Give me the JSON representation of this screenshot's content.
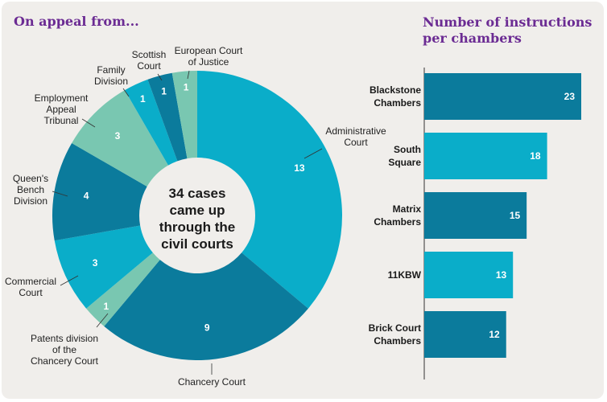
{
  "chart_data": [
    {
      "type": "pie",
      "title": "On appeal from...",
      "center_text": [
        "34 cases",
        "came up",
        "through the",
        "civil courts"
      ],
      "categories": [
        "Administrative Court",
        "Chancery Court",
        "Patents division of the Chancery Court",
        "Commercial Court",
        "Queen's Bench Division",
        "Employment Appeal Tribunal",
        "Family Division",
        "Scottish Court",
        "European Court of Justice"
      ],
      "values": [
        13,
        9,
        1,
        3,
        4,
        3,
        1,
        1,
        1
      ],
      "colors": [
        "#0aadc9",
        "#0b7b9c",
        "#79c7b1",
        "#0aadc9",
        "#0b7b9c",
        "#79c7b1",
        "#0aadc9",
        "#0b7b9c",
        "#79c7b1"
      ]
    },
    {
      "type": "bar",
      "orientation": "horizontal",
      "title": "Number of instructions per chambers",
      "categories": [
        [
          "Blackstone",
          "Chambers"
        ],
        [
          "South",
          "Square"
        ],
        [
          "Matrix",
          "Chambers"
        ],
        [
          "11KBW"
        ],
        [
          "Brick Court",
          "Chambers"
        ]
      ],
      "values": [
        23,
        18,
        15,
        13,
        12
      ],
      "colors": [
        "#0b7b9c",
        "#0aadc9",
        "#0b7b9c",
        "#0aadc9",
        "#0b7b9c"
      ],
      "xlim": [
        0,
        23
      ]
    }
  ]
}
